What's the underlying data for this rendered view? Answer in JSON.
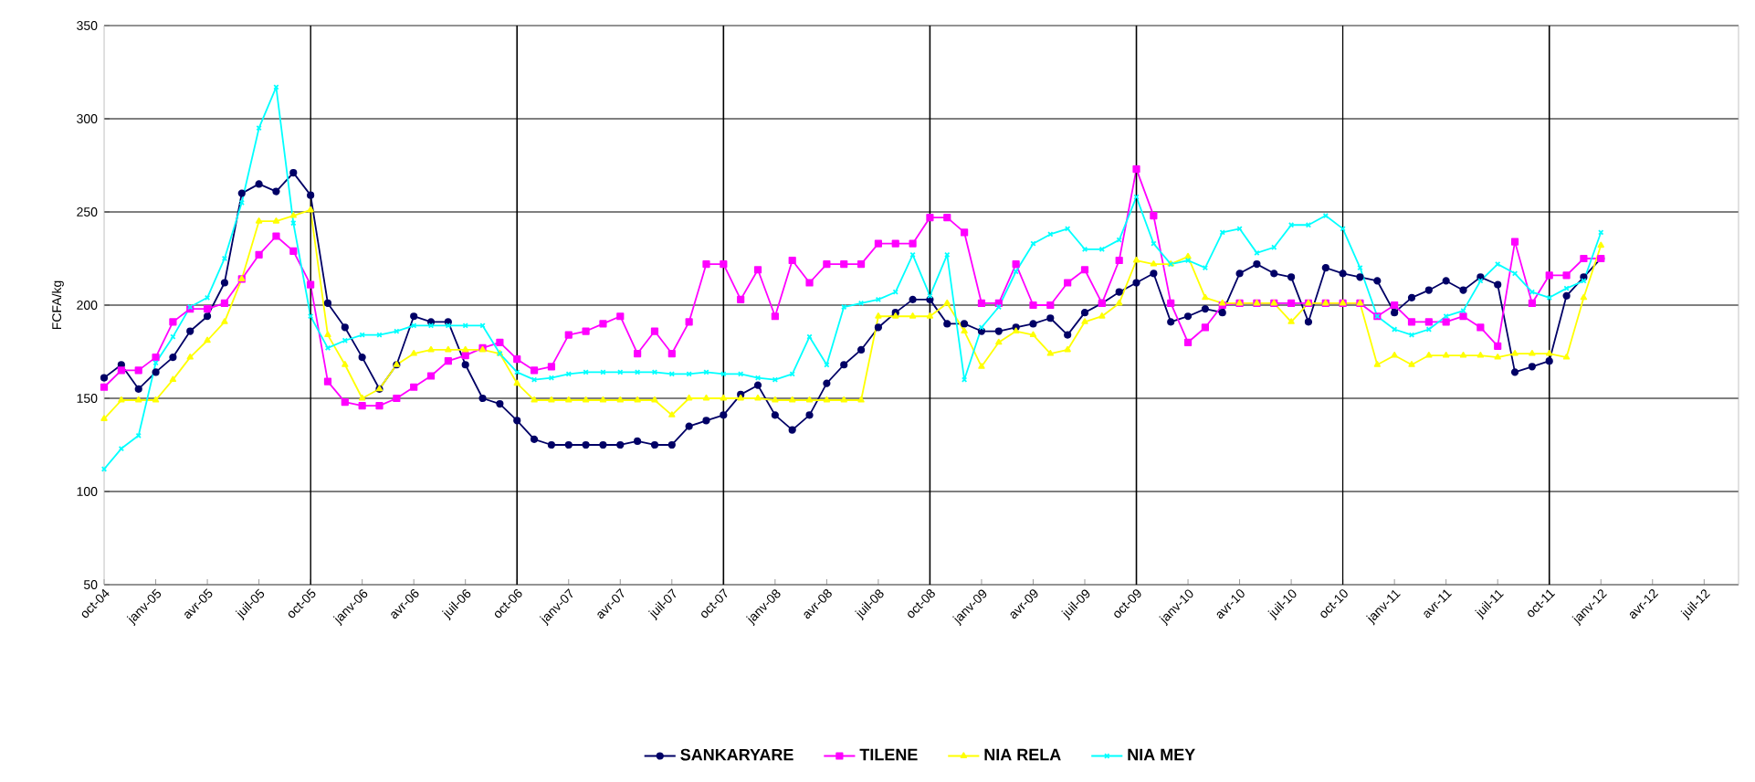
{
  "chart_data": {
    "type": "line",
    "ylabel": "FCFA/kg",
    "x": [
      "2004-10",
      "2004-11",
      "2004-12",
      "2005-01",
      "2005-02",
      "2005-03",
      "2005-04",
      "2005-05",
      "2005-06",
      "2005-07",
      "2005-08",
      "2005-09",
      "2005-10",
      "2005-11",
      "2005-12",
      "2006-01",
      "2006-02",
      "2006-03",
      "2006-04",
      "2006-05",
      "2006-06",
      "2006-07",
      "2006-08",
      "2006-09",
      "2006-10",
      "2006-11",
      "2006-12",
      "2007-01",
      "2007-02",
      "2007-03",
      "2007-04",
      "2007-05",
      "2007-06",
      "2007-07",
      "2007-08",
      "2007-09",
      "2007-10",
      "2007-11",
      "2007-12",
      "2008-01",
      "2008-02",
      "2008-03",
      "2008-04",
      "2008-05",
      "2008-06",
      "2008-07",
      "2008-08",
      "2008-09",
      "2008-10",
      "2008-11",
      "2008-12",
      "2009-01",
      "2009-02",
      "2009-03",
      "2009-04",
      "2009-05",
      "2009-06",
      "2009-07",
      "2009-08",
      "2009-09",
      "2009-10",
      "2009-11",
      "2009-12",
      "2010-01",
      "2010-02",
      "2010-03",
      "2010-04",
      "2010-05",
      "2010-06",
      "2010-07",
      "2010-08",
      "2010-09",
      "2010-10",
      "2010-11",
      "2010-12",
      "2011-01",
      "2011-02",
      "2011-03",
      "2011-04",
      "2011-05",
      "2011-06",
      "2011-07",
      "2011-08",
      "2011-09",
      "2011-10",
      "2011-11",
      "2011-12",
      "2012-01"
    ],
    "series": [
      {
        "name": "SANKARYARE",
        "color": "#000066",
        "marker": "circle",
        "values": [
          161,
          168,
          155,
          164,
          172,
          186,
          194,
          212,
          260,
          265,
          261,
          271,
          259,
          201,
          188,
          172,
          155,
          168,
          194,
          191,
          191,
          168,
          150,
          147,
          138,
          128,
          125,
          125,
          125,
          125,
          125,
          127,
          125,
          125,
          135,
          138,
          141,
          152,
          157,
          141,
          133,
          141,
          158,
          168,
          176,
          188,
          196,
          203,
          203,
          190,
          190,
          186,
          186,
          188,
          190,
          193,
          184,
          196,
          201,
          207,
          212,
          217,
          191,
          194,
          198,
          196,
          217,
          222,
          217,
          215,
          191,
          220,
          217,
          215,
          213,
          196,
          204,
          208,
          213,
          208,
          215,
          211,
          164,
          167,
          170,
          205,
          215,
          225
        ]
      },
      {
        "name": "TILENE",
        "color": "#ff00ff",
        "marker": "square",
        "values": [
          156,
          165,
          165,
          172,
          191,
          198,
          198,
          201,
          214,
          227,
          237,
          229,
          211,
          159,
          148,
          146,
          146,
          150,
          156,
          162,
          170,
          173,
          177,
          180,
          171,
          165,
          167,
          184,
          186,
          190,
          194,
          174,
          186,
          174,
          191,
          222,
          222,
          203,
          219,
          194,
          224,
          212,
          222,
          222,
          222,
          233,
          233,
          233,
          247,
          247,
          239,
          201,
          201,
          222,
          200,
          200,
          212,
          219,
          201,
          224,
          273,
          248,
          201,
          180,
          188,
          200,
          201,
          201,
          201,
          201,
          201,
          201,
          201,
          201,
          194,
          200,
          191,
          191,
          191,
          194,
          188,
          178,
          234,
          201,
          216,
          216,
          225,
          225
        ]
      },
      {
        "name": "NIA RELA",
        "color": "#ffff00",
        "marker": "triangle",
        "values": [
          139,
          149,
          149,
          149,
          160,
          172,
          181,
          191,
          214,
          245,
          245,
          248,
          251,
          184,
          168,
          150,
          155,
          168,
          174,
          176,
          176,
          176,
          176,
          174,
          158,
          149,
          149,
          149,
          149,
          149,
          149,
          149,
          149,
          141,
          150,
          150,
          150,
          150,
          150,
          149,
          149,
          149,
          149,
          149,
          149,
          194,
          194,
          194,
          194,
          201,
          186,
          167,
          180,
          186,
          184,
          174,
          176,
          191,
          194,
          201,
          224,
          222,
          222,
          226,
          204,
          201,
          201,
          201,
          201,
          191,
          201,
          201,
          201,
          201,
          168,
          173,
          168,
          173,
          173,
          173,
          173,
          172,
          174,
          174,
          174,
          172,
          204,
          232
        ]
      },
      {
        "name": "NIA MEY",
        "color": "#00ffff",
        "marker": "cross",
        "values": [
          112,
          123,
          130,
          169,
          183,
          199,
          204,
          225,
          255,
          295,
          317,
          244,
          194,
          177,
          181,
          184,
          184,
          186,
          189,
          189,
          189,
          189,
          189,
          174,
          164,
          160,
          161,
          163,
          164,
          164,
          164,
          164,
          164,
          163,
          163,
          164,
          163,
          163,
          161,
          160,
          163,
          183,
          168,
          199,
          201,
          203,
          207,
          227,
          205,
          227,
          160,
          188,
          199,
          218,
          233,
          238,
          241,
          230,
          230,
          235,
          258,
          233,
          222,
          224,
          220,
          239,
          241,
          228,
          231,
          243,
          243,
          248,
          241,
          220,
          194,
          187,
          184,
          187,
          194,
          197,
          213,
          222,
          217,
          207,
          204,
          209,
          213,
          239
        ]
      }
    ],
    "xlim": [
      "2004-10",
      "2012-09"
    ],
    "xticks": [
      {
        "value": "2004-10",
        "label": "oct-04"
      },
      {
        "value": "2005-01",
        "label": "janv-05"
      },
      {
        "value": "2005-04",
        "label": "avr-05"
      },
      {
        "value": "2005-07",
        "label": "juil-05"
      },
      {
        "value": "2005-10",
        "label": "oct-05"
      },
      {
        "value": "2006-01",
        "label": "janv-06"
      },
      {
        "value": "2006-04",
        "label": "avr-06"
      },
      {
        "value": "2006-07",
        "label": "juil-06"
      },
      {
        "value": "2006-10",
        "label": "oct-06"
      },
      {
        "value": "2007-01",
        "label": "janv-07"
      },
      {
        "value": "2007-04",
        "label": "avr-07"
      },
      {
        "value": "2007-07",
        "label": "juil-07"
      },
      {
        "value": "2007-10",
        "label": "oct-07"
      },
      {
        "value": "2008-01",
        "label": "janv-08"
      },
      {
        "value": "2008-04",
        "label": "avr-08"
      },
      {
        "value": "2008-07",
        "label": "juil-08"
      },
      {
        "value": "2008-10",
        "label": "oct-08"
      },
      {
        "value": "2009-01",
        "label": "janv-09"
      },
      {
        "value": "2009-04",
        "label": "avr-09"
      },
      {
        "value": "2009-07",
        "label": "juil-09"
      },
      {
        "value": "2009-10",
        "label": "oct-09"
      },
      {
        "value": "2010-01",
        "label": "janv-10"
      },
      {
        "value": "2010-04",
        "label": "avr-10"
      },
      {
        "value": "2010-07",
        "label": "juil-10"
      },
      {
        "value": "2010-10",
        "label": "oct-10"
      },
      {
        "value": "2011-01",
        "label": "janv-11"
      },
      {
        "value": "2011-04",
        "label": "avr-11"
      },
      {
        "value": "2011-07",
        "label": "juil-11"
      },
      {
        "value": "2011-10",
        "label": "oct-11"
      },
      {
        "value": "2012-01",
        "label": "janv-12"
      },
      {
        "value": "2012-04",
        "label": "avr-12"
      },
      {
        "value": "2012-07",
        "label": "juil-12"
      }
    ],
    "ylim": [
      50,
      350
    ],
    "yticks": [
      50,
      100,
      150,
      200,
      250,
      300,
      350
    ],
    "grid": "y",
    "legend": "bottom",
    "ref_lines": [
      {
        "axis": "x",
        "value": "2005-10",
        "color": "#000000"
      },
      {
        "axis": "x",
        "value": "2006-10",
        "color": "#000000"
      },
      {
        "axis": "x",
        "value": "2007-10",
        "color": "#000000"
      },
      {
        "axis": "x",
        "value": "2008-10",
        "color": "#000000"
      },
      {
        "axis": "x",
        "value": "2009-10",
        "color": "#000000"
      },
      {
        "axis": "x",
        "value": "2010-10",
        "color": "#000000"
      },
      {
        "axis": "x",
        "value": "2011-10",
        "color": "#000000"
      }
    ]
  }
}
